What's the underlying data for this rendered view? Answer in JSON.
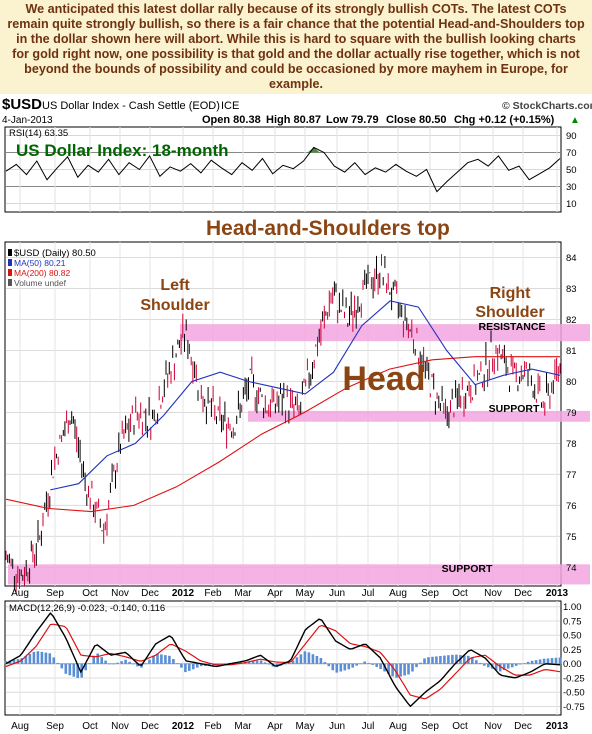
{
  "commentary": "We anticipated this latest dollar rally because of its strongly bullish COTs. The latest COTs remain quite strongly bullish, so there is a fair chance that the potential Head-and-Shoulders top in the dollar shown here will abort. While this is hard to square with the bullish looking charts for gold right now, one possibility is that gold and the dollar actually rise together, which is not beyond the bounds of possibility and could be occasioned by more mayhem in Europe, for example.",
  "chart_header": {
    "symbol": "$USD",
    "name": "US Dollar Index - Cash Settle (EOD)",
    "exchange": "ICE",
    "credit": "© StockCharts.com",
    "date": "4-Jan-2013",
    "open": "Open 80.38",
    "high": "High 80.87",
    "low": "Low 79.79",
    "close": "Close 80.50",
    "change": "Chg +0.12 (+0.15%)",
    "updown_glyph": "▲"
  },
  "colors": {
    "price_bars": "#000000",
    "price_bars_down": "#cc0033",
    "ma50": "#2233bb",
    "ma200": "#dd1111",
    "band": "#f3a6e0",
    "annotation": "#8b4513",
    "title_green": "#006600",
    "macd_hist": "#5a8fd6",
    "panel_bg": "#ffffff"
  },
  "chart_data": {
    "type": "line",
    "title": "US Dollar Index: 18-month",
    "annotations": {
      "pattern": "Head-and-Shoulders top",
      "left_shoulder": "Left\nShoulder",
      "right_shoulder": "Right\nShoulder",
      "head": "Head",
      "resistance": "RESISTANCE",
      "support_mid": "SUPPORT",
      "support_low": "SUPPORT"
    },
    "x_tick_labels": [
      "Aug",
      "Sep",
      "Oct",
      "Nov",
      "Dec",
      "2012",
      "Feb",
      "Mar",
      "Apr",
      "May",
      "Jun",
      "Jul",
      "Aug",
      "Sep",
      "Oct",
      "Nov",
      "Dec",
      "2013"
    ],
    "price_panel": {
      "legend": [
        "$USD (Daily) 80.50",
        "MA(50) 80.21",
        "MA(200) 80.82",
        "Volume undef"
      ],
      "y_ticks": [
        74,
        75,
        76,
        77,
        78,
        79,
        80,
        81,
        82,
        83,
        84
      ],
      "ylim": [
        73.4,
        84.5
      ],
      "resistance_band": [
        81.3,
        81.85
      ],
      "support_band_mid": [
        78.7,
        79.05
      ],
      "support_band_low": [
        73.45,
        74.1
      ],
      "close_keypoints": [
        {
          "x": "Aug-2011",
          "y": 74.3
        },
        {
          "x": "Aug-2011 mid",
          "y": 73.7
        },
        {
          "x": "Sep-2011",
          "y": 74.8
        },
        {
          "x": "Sep-2011 late",
          "y": 77.5
        },
        {
          "x": "Oct-2011 early",
          "y": 79.0
        },
        {
          "x": "Oct-2011 mid",
          "y": 76.5
        },
        {
          "x": "Oct-2011 late",
          "y": 75.2
        },
        {
          "x": "Nov-2011",
          "y": 77.9
        },
        {
          "x": "Nov-2011 late",
          "y": 79.0
        },
        {
          "x": "Dec-2011",
          "y": 78.8
        },
        {
          "x": "Dec-2011 late",
          "y": 80.3
        },
        {
          "x": "Jan-2012 mid",
          "y": 81.6
        },
        {
          "x": "Jan-2012 late",
          "y": 79.6
        },
        {
          "x": "Feb-2012",
          "y": 78.8
        },
        {
          "x": "Feb-2012 late",
          "y": 78.6
        },
        {
          "x": "Mar-2012 mid",
          "y": 80.0
        },
        {
          "x": "Apr-2012",
          "y": 79.2
        },
        {
          "x": "Apr-2012 late",
          "y": 79.4
        },
        {
          "x": "May-2012",
          "y": 79.0
        },
        {
          "x": "May-2012 mid",
          "y": 81.0
        },
        {
          "x": "Jun-2012",
          "y": 82.8
        },
        {
          "x": "Jun-2012 mid",
          "y": 82.0
        },
        {
          "x": "Jul-2012",
          "y": 83.0
        },
        {
          "x": "Jul-2012 late",
          "y": 83.6
        },
        {
          "x": "Aug-2012",
          "y": 82.5
        },
        {
          "x": "Aug-2012 late",
          "y": 81.5
        },
        {
          "x": "Sep-2012 early",
          "y": 80.0
        },
        {
          "x": "Sep-2012 mid",
          "y": 78.9
        },
        {
          "x": "Oct-2012",
          "y": 79.6
        },
        {
          "x": "Oct-2012 late",
          "y": 80.0
        },
        {
          "x": "Nov-2012 mid",
          "y": 81.1
        },
        {
          "x": "Nov-2012 late",
          "y": 80.2
        },
        {
          "x": "Dec-2012",
          "y": 80.3
        },
        {
          "x": "Dec-2012 late",
          "y": 79.2
        },
        {
          "x": "Jan-2013",
          "y": 80.5
        }
      ],
      "ma50_keypoints": [
        76.5,
        76.7,
        77.6,
        78.0,
        78.9,
        80.0,
        80.3,
        80.0,
        79.8,
        79.6,
        80.3,
        81.8,
        82.6,
        82.4,
        81.0,
        79.9,
        80.2,
        80.4,
        80.2
      ],
      "ma200_keypoints": [
        76.2,
        75.9,
        75.8,
        76.0,
        76.6,
        77.4,
        78.3,
        79.0,
        79.8,
        80.4,
        80.7,
        80.8,
        80.8,
        80.8
      ]
    },
    "rsi_panel": {
      "label": "RSI(14) 63.35",
      "y_ticks": [
        10,
        30,
        50,
        70,
        90
      ],
      "overbought": 70,
      "oversold": 30,
      "values": [
        48,
        56,
        44,
        60,
        38,
        52,
        65,
        41,
        55,
        47,
        62,
        44,
        58,
        50,
        66,
        42,
        53,
        48,
        57,
        46,
        61,
        52,
        44,
        58,
        49,
        63,
        45,
        55,
        51,
        60,
        76,
        70,
        54,
        47,
        58,
        44,
        52,
        47,
        56,
        48,
        42,
        50,
        24,
        36,
        47,
        58,
        62,
        54,
        66,
        49,
        54,
        38,
        45,
        52,
        63
      ]
    },
    "macd_panel": {
      "label": "MACD(12,26,9) -0.023, -0.140, 0.116",
      "y_ticks": [
        1.0,
        0.75,
        0.5,
        0.25,
        0.0,
        -0.25,
        -0.5,
        -0.75
      ],
      "macd_values": [
        0.0,
        0.15,
        0.55,
        0.9,
        0.45,
        -0.15,
        0.35,
        0.15,
        0.2,
        -0.05,
        0.35,
        0.5,
        0.05,
        0.0,
        -0.05,
        0.0,
        0.05,
        0.15,
        -0.05,
        0.05,
        0.6,
        0.8,
        0.4,
        0.25,
        0.35,
        0.1,
        -0.4,
        -0.75,
        -0.5,
        -0.3,
        0.0,
        0.25,
        0.1,
        -0.2,
        -0.25,
        -0.15,
        0.0,
        -0.02
      ],
      "signal_values": [
        -0.05,
        0.05,
        0.3,
        0.7,
        0.65,
        0.15,
        0.12,
        0.18,
        0.12,
        0.04,
        0.15,
        0.35,
        0.22,
        0.05,
        -0.02,
        -0.02,
        0.02,
        0.08,
        0.03,
        0.02,
        0.35,
        0.68,
        0.58,
        0.35,
        0.3,
        0.2,
        -0.12,
        -0.55,
        -0.62,
        -0.45,
        -0.18,
        0.1,
        0.15,
        -0.05,
        -0.2,
        -0.2,
        -0.1,
        -0.14
      ]
    }
  }
}
